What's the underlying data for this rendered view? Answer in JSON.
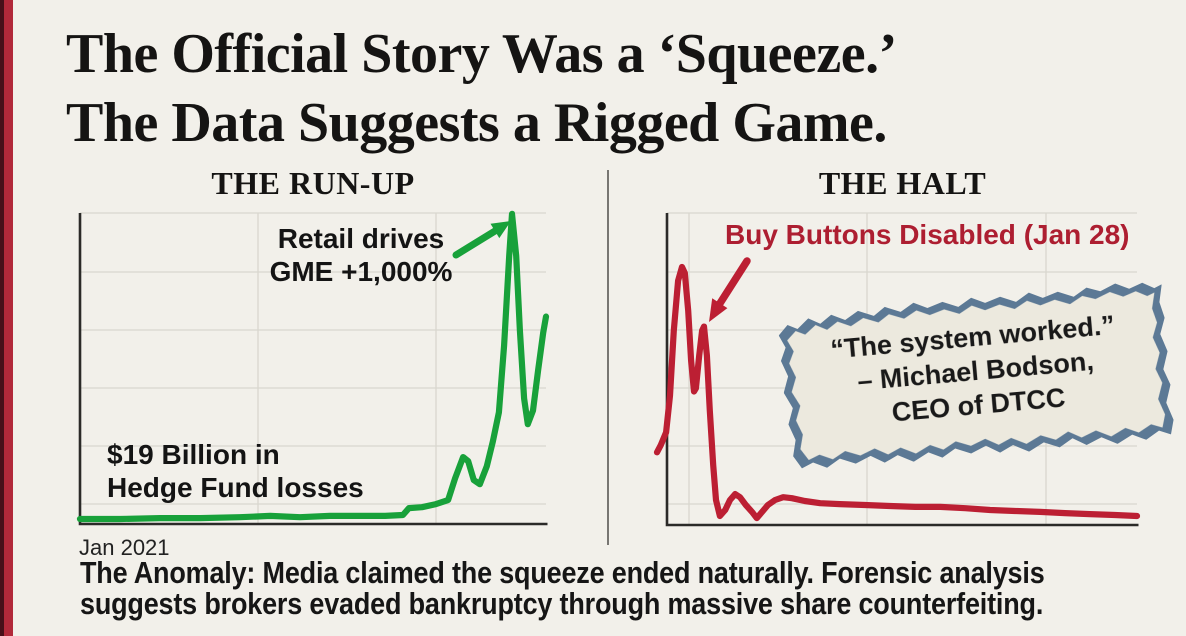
{
  "colors": {
    "background": "#f2f0ea",
    "accent_bar_dark": "#471019",
    "accent_bar_red": "#b2293a",
    "title_text": "#151413",
    "green": "#18a13a",
    "red": "#bc1f33",
    "red_text": "#ad1e31",
    "axis": "#2b2a28",
    "grid": "#d9d6cf",
    "divider": "#787672",
    "note_paper": "#ece9de",
    "note_border": "#5c7995",
    "note_text": "#191919",
    "caption_text": "#161616",
    "annotation_text": "#141414"
  },
  "title": {
    "line1": "The Official Story Was a ‘Squeeze.’",
    "line2": "The Data Suggests a Rigged Game."
  },
  "left_panel": {
    "heading": "THE RUN-UP",
    "retail_annotation": {
      "line1": "Retail drives",
      "line2": "GME +1,000%"
    },
    "losses_annotation": {
      "line1": "$19 Billion in",
      "line2": "Hedge Fund losses"
    },
    "x_axis_label": "Jan 2021"
  },
  "right_panel": {
    "heading": "THE HALT",
    "halt_annotation": "Buy Buttons Disabled (Jan 28)",
    "note": {
      "line1": "“The system worked.”",
      "line2": "– Michael Bodson,",
      "line3": "CEO of DTCC"
    }
  },
  "caption": {
    "line1": "The Anomaly: Media claimed the squeeze ended naturally. Forensic analysis",
    "line2": "suggests brokers evaded bankruptcy through massive share counterfeiting."
  },
  "chart_data": [
    {
      "type": "line",
      "title": "THE RUN-UP",
      "xlabel": "Jan 2021",
      "ylabel": "",
      "grid": true,
      "x_axis": {
        "tick_labels": [
          "Jan 2021"
        ],
        "note": "January 2021 trading days, left to right"
      },
      "y_axis": {
        "tick_labels": [],
        "range": [
          0,
          100
        ],
        "note": "GME price indexed, % of chart maximum"
      },
      "annotations": [
        "Retail drives GME +1,000%",
        "$19 Billion in Hedge Fund losses"
      ],
      "series": [
        {
          "name": "GME price (indexed % of max)",
          "color": "#18a13a",
          "points": [
            [
              0,
              1.6
            ],
            [
              8.6,
              1.6
            ],
            [
              17.2,
              1.9
            ],
            [
              25.8,
              1.9
            ],
            [
              34.3,
              2.2
            ],
            [
              40.8,
              2.6
            ],
            [
              47.2,
              2.2
            ],
            [
              53.6,
              2.6
            ],
            [
              60.1,
              2.6
            ],
            [
              65.5,
              2.6
            ],
            [
              69.3,
              2.9
            ],
            [
              70.6,
              5.1
            ],
            [
              73.4,
              5.4
            ],
            [
              76.4,
              6.4
            ],
            [
              79,
              7.7
            ],
            [
              80.5,
              14.7
            ],
            [
              82.2,
              21.5
            ],
            [
              83.3,
              20.2
            ],
            [
              84.5,
              14.1
            ],
            [
              85.8,
              12.8
            ],
            [
              87.3,
              18.6
            ],
            [
              88.6,
              26.6
            ],
            [
              89.9,
              35.9
            ],
            [
              91,
              57.4
            ],
            [
              92.1,
              86.2
            ],
            [
              92.7,
              99.7
            ],
            [
              93.6,
              86.2
            ],
            [
              94.4,
              62.2
            ],
            [
              95.3,
              40.4
            ],
            [
              96.1,
              32.1
            ],
            [
              97.2,
              36.5
            ],
            [
              98.3,
              49.4
            ],
            [
              99.4,
              61.5
            ],
            [
              100,
              66.7
            ]
          ]
        }
      ]
    },
    {
      "type": "line",
      "title": "THE HALT",
      "xlabel": "",
      "ylabel": "",
      "grid": true,
      "x_axis": {
        "tick_labels": [],
        "note": "Late January onward, left to right"
      },
      "y_axis": {
        "tick_labels": [],
        "range": [
          0,
          100
        ],
        "note": "GME price indexed, % of chart maximum"
      },
      "annotations": [
        "Buy Buttons Disabled (Jan 28)",
        "“The system worked.” – Michael Bodson, CEO of DTCC"
      ],
      "series": [
        {
          "name": "GME price (indexed % of max)",
          "color": "#bc1f33",
          "points": [
            [
              0,
              23.3
            ],
            [
              0.8,
              25.6
            ],
            [
              1.9,
              29.7
            ],
            [
              2.7,
              41.5
            ],
            [
              3.5,
              62.3
            ],
            [
              4.4,
              78.3
            ],
            [
              5.2,
              82.7
            ],
            [
              5.8,
              80.8
            ],
            [
              6.5,
              68.7
            ],
            [
              7.1,
              52.7
            ],
            [
              7.7,
              42.8
            ],
            [
              8.1,
              43.8
            ],
            [
              8.8,
              54.3
            ],
            [
              9.4,
              62.3
            ],
            [
              9.8,
              63.6
            ],
            [
              10.4,
              54.3
            ],
            [
              11,
              36.7
            ],
            [
              11.7,
              19.2
            ],
            [
              12.3,
              8
            ],
            [
              13.1,
              2.9
            ],
            [
              14.2,
              4.8
            ],
            [
              15.2,
              8
            ],
            [
              16.3,
              9.9
            ],
            [
              17.3,
              8.9
            ],
            [
              18.5,
              6.4
            ],
            [
              19.8,
              4.2
            ],
            [
              20.8,
              2.2
            ],
            [
              21.9,
              4.2
            ],
            [
              23.1,
              6.4
            ],
            [
              24.6,
              8
            ],
            [
              26.3,
              8.9
            ],
            [
              28.1,
              8.6
            ],
            [
              30.8,
              7.7
            ],
            [
              34,
              7
            ],
            [
              38.1,
              6.7
            ],
            [
              43.3,
              6.4
            ],
            [
              48.5,
              6.1
            ],
            [
              53.8,
              5.8
            ],
            [
              59,
              5.8
            ],
            [
              64.2,
              5.4
            ],
            [
              69.4,
              4.8
            ],
            [
              74.6,
              4.5
            ],
            [
              79.8,
              4.2
            ],
            [
              85,
              3.8
            ],
            [
              90.2,
              3.5
            ],
            [
              95.4,
              3.2
            ],
            [
              100,
              2.9
            ]
          ]
        }
      ]
    }
  ]
}
